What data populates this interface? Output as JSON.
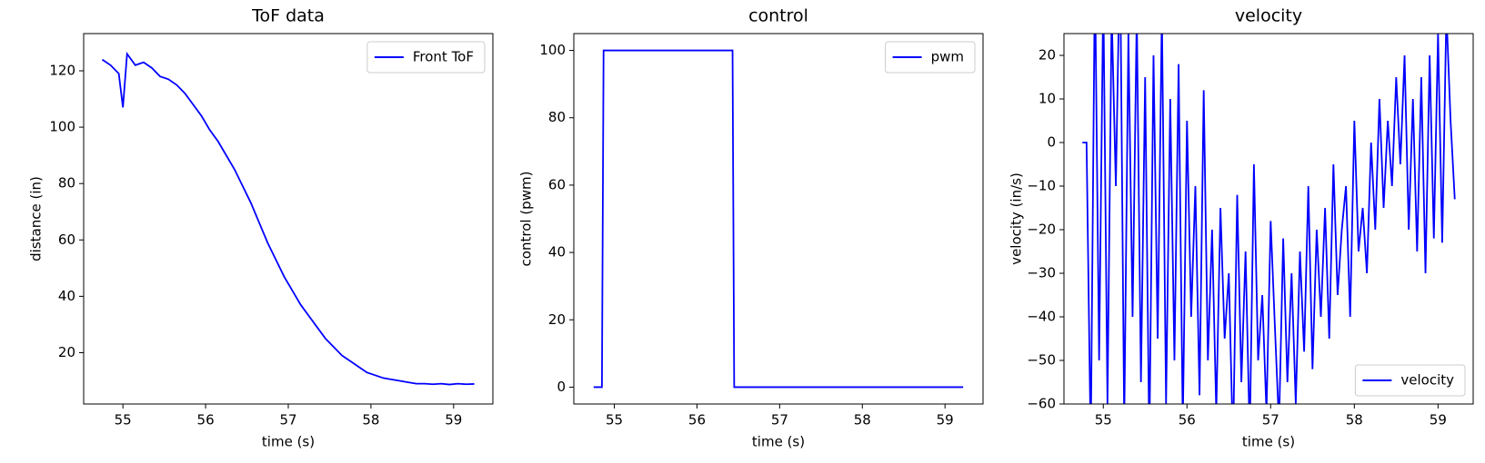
{
  "chart_data": [
    {
      "type": "line",
      "title": "ToF data",
      "xlabel": "time (s)",
      "ylabel": "distance (in)",
      "x": [
        54.75,
        54.85,
        54.95,
        55.0,
        55.05,
        55.15,
        55.25,
        55.35,
        55.45,
        55.55,
        55.65,
        55.75,
        55.85,
        55.95,
        56.05,
        56.15,
        56.25,
        56.35,
        56.45,
        56.55,
        56.65,
        56.75,
        56.85,
        56.95,
        57.05,
        57.15,
        57.25,
        57.35,
        57.45,
        57.55,
        57.65,
        57.75,
        57.85,
        57.95,
        58.05,
        58.15,
        58.25,
        58.35,
        58.45,
        58.55,
        58.65,
        58.75,
        58.85,
        58.95,
        59.05,
        59.15,
        59.25
      ],
      "series": [
        {
          "name": "Front ToF",
          "color": "#0000ff",
          "values": [
            124,
            122,
            119,
            107,
            126,
            122,
            123,
            121,
            118,
            117,
            115,
            112,
            108,
            104,
            99,
            95,
            90,
            85,
            79,
            73,
            66,
            59,
            53,
            47,
            42,
            37,
            33,
            29,
            25,
            22,
            19,
            17,
            15,
            13,
            12,
            11,
            10.5,
            10,
            9.5,
            9,
            9,
            8.8,
            9,
            8.7,
            9,
            8.8,
            8.9
          ]
        }
      ],
      "xlim": [
        54.525,
        59.475
      ],
      "ylim": [
        1.8,
        133.2
      ],
      "xticks": [
        55,
        56,
        57,
        58,
        59
      ],
      "yticks": [
        20,
        40,
        60,
        80,
        100,
        120
      ],
      "legend": "upper right"
    },
    {
      "type": "line",
      "title": "control",
      "xlabel": "time (s)",
      "ylabel": "control (pwm)",
      "x": [
        54.75,
        54.85,
        54.87,
        56.43,
        56.45,
        59.22
      ],
      "series": [
        {
          "name": "pwm",
          "color": "#0000ff",
          "values": [
            0,
            0,
            100,
            100,
            0,
            0
          ]
        }
      ],
      "xlim": [
        54.51,
        59.46
      ],
      "ylim": [
        -5,
        105
      ],
      "xticks": [
        55,
        56,
        57,
        58,
        59
      ],
      "yticks": [
        0,
        20,
        40,
        60,
        80,
        100
      ],
      "legend": "upper right"
    },
    {
      "type": "line",
      "title": "velocity",
      "xlabel": "time (s)",
      "ylabel": "velocity (in/s)",
      "x": [
        54.75,
        54.8,
        54.85,
        54.9,
        54.95,
        55.0,
        55.05,
        55.1,
        55.15,
        55.2,
        55.25,
        55.3,
        55.35,
        55.4,
        55.45,
        55.5,
        55.55,
        55.6,
        55.65,
        55.7,
        55.75,
        55.8,
        55.85,
        55.9,
        55.95,
        56.0,
        56.05,
        56.1,
        56.15,
        56.2,
        56.25,
        56.3,
        56.35,
        56.4,
        56.45,
        56.5,
        56.55,
        56.6,
        56.65,
        56.7,
        56.75,
        56.8,
        56.85,
        56.9,
        56.95,
        57.0,
        57.05,
        57.1,
        57.15,
        57.2,
        57.25,
        57.3,
        57.35,
        57.4,
        57.45,
        57.5,
        57.55,
        57.6,
        57.65,
        57.7,
        57.75,
        57.8,
        57.85,
        57.9,
        57.95,
        58.0,
        58.05,
        58.1,
        58.15,
        58.2,
        58.25,
        58.3,
        58.35,
        58.4,
        58.45,
        58.5,
        58.55,
        58.6,
        58.65,
        58.7,
        58.75,
        58.8,
        58.85,
        58.9,
        58.95,
        59.0,
        59.05,
        59.1,
        59.15,
        59.2
      ],
      "series": [
        {
          "name": "velocity",
          "color": "#0000ff",
          "values": [
            0,
            0,
            -70,
            40,
            -50,
            35,
            -60,
            30,
            -10,
            45,
            -65,
            25,
            -40,
            30,
            -55,
            15,
            -70,
            20,
            -45,
            30,
            -60,
            10,
            -50,
            18,
            -65,
            5,
            -40,
            -10,
            -58,
            12,
            -50,
            -20,
            -62,
            -15,
            -45,
            -30,
            -70,
            -12,
            -55,
            -25,
            -68,
            -5,
            -50,
            -35,
            -62,
            -18,
            -42,
            -65,
            -22,
            -55,
            -30,
            -60,
            -25,
            -48,
            -10,
            -52,
            -20,
            -40,
            -15,
            -45,
            -5,
            -35,
            -20,
            -10,
            -40,
            5,
            -25,
            -15,
            -30,
            0,
            -20,
            10,
            -15,
            5,
            -10,
            15,
            -5,
            20,
            -20,
            10,
            -25,
            15,
            -30,
            20,
            -22,
            25,
            -23,
            30,
            5,
            -13
          ]
        }
      ],
      "xlim": [
        54.53,
        59.42
      ],
      "ylim": [
        -60,
        25
      ],
      "xticks": [
        55,
        56,
        57,
        58,
        59
      ],
      "yticks": [
        {
          "value": -60,
          "label": "−60"
        },
        {
          "value": -50,
          "label": "−50"
        },
        {
          "value": -40,
          "label": "−40"
        },
        {
          "value": -30,
          "label": "−30"
        },
        {
          "value": -20,
          "label": "−20"
        },
        {
          "value": -10,
          "label": "−10"
        },
        0,
        10,
        20
      ],
      "legend": "lower right"
    }
  ]
}
